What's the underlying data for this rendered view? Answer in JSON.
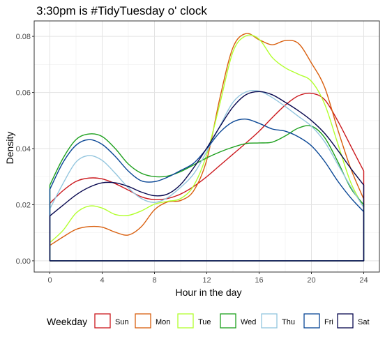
{
  "chart_data": {
    "type": "line",
    "title": "3:30pm is #TidyTuesday o' clock",
    "xlabel": "Hour in the day",
    "ylabel": "Density",
    "xlim": [
      -1.2,
      25.2
    ],
    "ylim": [
      -0.004,
      0.0855
    ],
    "x_ticks": [
      0,
      4,
      8,
      12,
      16,
      20,
      24
    ],
    "x_tick_labels": [
      "0",
      "4",
      "8",
      "12",
      "16",
      "20",
      "24"
    ],
    "y_ticks": [
      0.0,
      0.02,
      0.04,
      0.06,
      0.08
    ],
    "y_tick_labels": [
      "0.00",
      "0.02",
      "0.04",
      "0.06",
      "0.08"
    ],
    "grid": true,
    "legend": {
      "title": "Weekday",
      "position": "bottom",
      "labels": [
        "Sun",
        "Mon",
        "Tue",
        "Wed",
        "Thu",
        "Fri",
        "Sat"
      ]
    },
    "series": [
      {
        "name": "Sun",
        "color": "#cb181d",
        "points": [
          [
            0,
            0.0205
          ],
          [
            1,
            0.025
          ],
          [
            2,
            0.0283
          ],
          [
            3,
            0.0295
          ],
          [
            4,
            0.0292
          ],
          [
            5,
            0.0275
          ],
          [
            6,
            0.0252
          ],
          [
            7,
            0.0228
          ],
          [
            8,
            0.0218
          ],
          [
            9,
            0.0222
          ],
          [
            10,
            0.0238
          ],
          [
            11,
            0.0265
          ],
          [
            12,
            0.03
          ],
          [
            13,
            0.034
          ],
          [
            14,
            0.038
          ],
          [
            15,
            0.042
          ],
          [
            16,
            0.0462
          ],
          [
            17,
            0.051
          ],
          [
            18,
            0.0555
          ],
          [
            19,
            0.0588
          ],
          [
            20,
            0.0597
          ],
          [
            21,
            0.0575
          ],
          [
            22,
            0.05
          ],
          [
            23,
            0.041
          ],
          [
            24,
            0.032
          ]
        ]
      },
      {
        "name": "Mon",
        "color": "#d95f0e",
        "points": [
          [
            0,
            0.0055
          ],
          [
            1,
            0.0085
          ],
          [
            2,
            0.0112
          ],
          [
            3,
            0.0122
          ],
          [
            4,
            0.012
          ],
          [
            5,
            0.0102
          ],
          [
            6,
            0.0092
          ],
          [
            7,
            0.0122
          ],
          [
            8,
            0.0182
          ],
          [
            9,
            0.021
          ],
          [
            10,
            0.0215
          ],
          [
            11,
            0.025
          ],
          [
            12,
            0.036
          ],
          [
            13,
            0.058
          ],
          [
            14,
            0.076
          ],
          [
            15,
            0.081
          ],
          [
            16,
            0.0788
          ],
          [
            17,
            0.077
          ],
          [
            18,
            0.0785
          ],
          [
            19,
            0.0775
          ],
          [
            20,
            0.0705
          ],
          [
            21,
            0.062
          ],
          [
            22,
            0.047
          ],
          [
            23,
            0.033
          ],
          [
            24,
            0.022
          ]
        ]
      },
      {
        "name": "Tue",
        "color": "#b2ff2e",
        "points": [
          [
            0,
            0.0065
          ],
          [
            1,
            0.0108
          ],
          [
            2,
            0.017
          ],
          [
            3,
            0.0195
          ],
          [
            4,
            0.0188
          ],
          [
            5,
            0.0165
          ],
          [
            6,
            0.0162
          ],
          [
            7,
            0.0178
          ],
          [
            8,
            0.0202
          ],
          [
            9,
            0.0212
          ],
          [
            10,
            0.0222
          ],
          [
            11,
            0.0268
          ],
          [
            12,
            0.038
          ],
          [
            13,
            0.056
          ],
          [
            14,
            0.0745
          ],
          [
            15,
            0.0802
          ],
          [
            16,
            0.079
          ],
          [
            17,
            0.0725
          ],
          [
            18,
            0.0688
          ],
          [
            19,
            0.0665
          ],
          [
            20,
            0.064
          ],
          [
            21,
            0.056
          ],
          [
            22,
            0.042
          ],
          [
            23,
            0.028
          ],
          [
            24,
            0.019
          ]
        ]
      },
      {
        "name": "Wed",
        "color": "#1ea01e",
        "points": [
          [
            0,
            0.027
          ],
          [
            1,
            0.0365
          ],
          [
            2,
            0.0432
          ],
          [
            3,
            0.0452
          ],
          [
            4,
            0.0443
          ],
          [
            5,
            0.04
          ],
          [
            6,
            0.0345
          ],
          [
            7,
            0.0312
          ],
          [
            8,
            0.03
          ],
          [
            9,
            0.0302
          ],
          [
            10,
            0.0318
          ],
          [
            11,
            0.0342
          ],
          [
            12,
            0.0367
          ],
          [
            13,
            0.0388
          ],
          [
            14,
            0.0405
          ],
          [
            15,
            0.0418
          ],
          [
            16,
            0.042
          ],
          [
            17,
            0.0423
          ],
          [
            18,
            0.0445
          ],
          [
            19,
            0.0473
          ],
          [
            20,
            0.048
          ],
          [
            21,
            0.044
          ],
          [
            22,
            0.0355
          ],
          [
            23,
            0.026
          ],
          [
            24,
            0.02
          ]
        ]
      },
      {
        "name": "Thu",
        "color": "#92c5de",
        "points": [
          [
            0,
            0.0185
          ],
          [
            1,
            0.0275
          ],
          [
            2,
            0.0352
          ],
          [
            3,
            0.0375
          ],
          [
            4,
            0.0358
          ],
          [
            5,
            0.0312
          ],
          [
            6,
            0.026
          ],
          [
            7,
            0.0222
          ],
          [
            8,
            0.0208
          ],
          [
            9,
            0.0225
          ],
          [
            10,
            0.0262
          ],
          [
            11,
            0.031
          ],
          [
            12,
            0.039
          ],
          [
            13,
            0.048
          ],
          [
            14,
            0.0565
          ],
          [
            15,
            0.0602
          ],
          [
            16,
            0.0605
          ],
          [
            17,
            0.0582
          ],
          [
            18,
            0.055
          ],
          [
            19,
            0.0515
          ],
          [
            20,
            0.048
          ],
          [
            21,
            0.0425
          ],
          [
            22,
            0.0345
          ],
          [
            23,
            0.0265
          ],
          [
            24,
            0.019
          ]
        ]
      },
      {
        "name": "Fri",
        "color": "#084594",
        "points": [
          [
            0,
            0.0255
          ],
          [
            1,
            0.035
          ],
          [
            2,
            0.0412
          ],
          [
            3,
            0.0432
          ],
          [
            4,
            0.0415
          ],
          [
            5,
            0.0372
          ],
          [
            6,
            0.032
          ],
          [
            7,
            0.0285
          ],
          [
            8,
            0.0282
          ],
          [
            9,
            0.0298
          ],
          [
            10,
            0.0322
          ],
          [
            11,
            0.0348
          ],
          [
            12,
            0.04
          ],
          [
            13,
            0.0458
          ],
          [
            14,
            0.0495
          ],
          [
            15,
            0.0505
          ],
          [
            16,
            0.049
          ],
          [
            17,
            0.047
          ],
          [
            18,
            0.0462
          ],
          [
            19,
            0.0442
          ],
          [
            20,
            0.041
          ],
          [
            21,
            0.0355
          ],
          [
            22,
            0.0285
          ],
          [
            23,
            0.0225
          ],
          [
            24,
            0.0175
          ]
        ]
      },
      {
        "name": "Sat",
        "color": "#08084f",
        "points": [
          [
            0,
            0.016
          ],
          [
            1,
            0.0198
          ],
          [
            2,
            0.0235
          ],
          [
            3,
            0.0262
          ],
          [
            4,
            0.0278
          ],
          [
            5,
            0.0278
          ],
          [
            6,
            0.0265
          ],
          [
            7,
            0.0245
          ],
          [
            8,
            0.0232
          ],
          [
            9,
            0.0238
          ],
          [
            10,
            0.0272
          ],
          [
            11,
            0.0332
          ],
          [
            12,
            0.0402
          ],
          [
            13,
            0.0478
          ],
          [
            14,
            0.0548
          ],
          [
            15,
            0.0592
          ],
          [
            16,
            0.0603
          ],
          [
            17,
            0.0592
          ],
          [
            18,
            0.0565
          ],
          [
            19,
            0.0535
          ],
          [
            20,
            0.05
          ],
          [
            21,
            0.0455
          ],
          [
            22,
            0.0395
          ],
          [
            23,
            0.033
          ],
          [
            24,
            0.027
          ]
        ]
      }
    ]
  }
}
